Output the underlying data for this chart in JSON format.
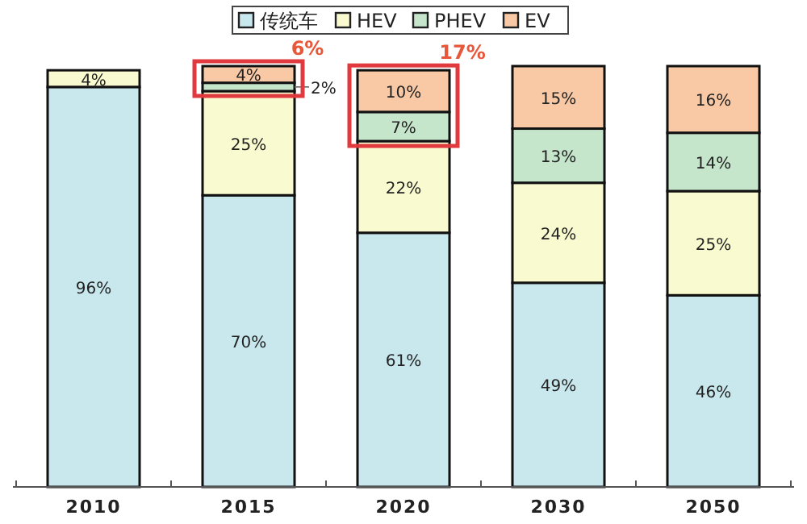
{
  "chart_data": {
    "type": "bar",
    "stacked": true,
    "legend": "top",
    "categories": [
      "2010",
      "2015",
      "2020",
      "2030",
      "2050"
    ],
    "series": [
      {
        "name": "传统车",
        "color": "#c8e8ee",
        "values": [
          96,
          70,
          61,
          49,
          46
        ],
        "value_labels": [
          "96%",
          "70%",
          "61%",
          "49%",
          "46%"
        ]
      },
      {
        "name": "HEV",
        "color": "#fafad0",
        "values": [
          4,
          25,
          22,
          24,
          25
        ],
        "value_labels": [
          "4%",
          "25%",
          "22%",
          "24%",
          "25%"
        ]
      },
      {
        "name": "PHEV",
        "color": "#c6e6cc",
        "values": [
          null,
          2,
          7,
          13,
          14
        ],
        "value_labels": [
          null,
          "2%",
          "7%",
          "13%",
          "14%"
        ]
      },
      {
        "name": "EV",
        "color": "#f9c9a6",
        "values": [
          null,
          4,
          10,
          15,
          16
        ],
        "value_labels": [
          null,
          "4%",
          "10%",
          "15%",
          "16%"
        ]
      }
    ],
    "annotations": [
      {
        "text": "6%",
        "x": "2015",
        "y": 101
      },
      {
        "text": "17%",
        "x": "2020",
        "y": 100
      }
    ]
  }
}
